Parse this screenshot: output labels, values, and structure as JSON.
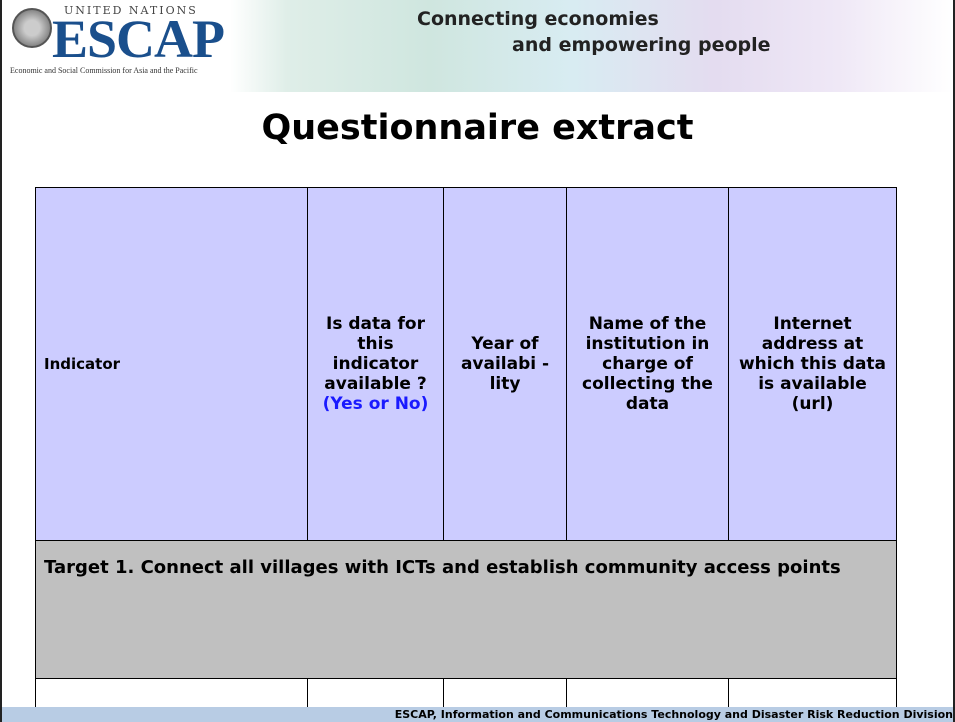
{
  "header": {
    "org": "UNITED NATIONS",
    "logo": "ESCAP",
    "logo_subtitle": "Economic and Social Commission for Asia and the Pacific",
    "tagline": [
      "Connecting economies",
      "and empowering people"
    ]
  },
  "title": "Questionnaire extract",
  "table": {
    "columns": [
      {
        "text": "Indicator"
      },
      {
        "text": "Is data for this indicator available ?",
        "highlight": "(Yes or No)"
      },
      {
        "text": "Year of availabi -lity"
      },
      {
        "text": "Name of the institution in charge of collecting the data"
      },
      {
        "text": "Internet address at which this data is available (url)"
      }
    ],
    "section": "Target 1. Connect all villages with ICTs and establish community access points"
  },
  "footer": "ESCAP, Information and Communications Technology and Disaster Risk Reduction Division"
}
